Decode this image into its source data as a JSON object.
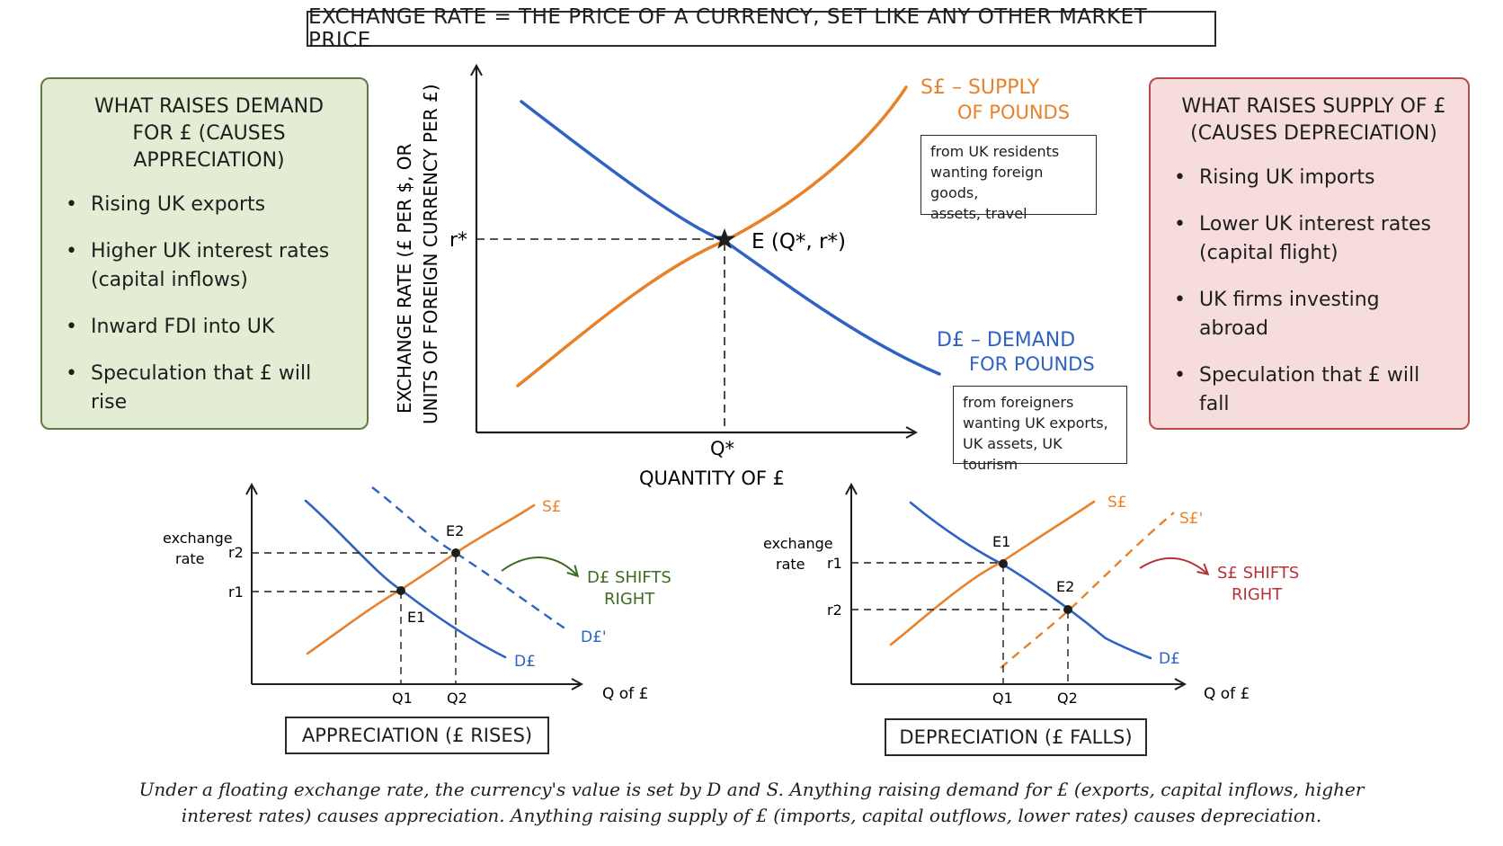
{
  "title": "EXCHANGE RATE = THE PRICE OF A CURRENCY, SET LIKE ANY OTHER MARKET PRICE",
  "demand_panel": {
    "heading_line1": "WHAT RAISES DEMAND",
    "heading_line2": "FOR £ (CAUSES APPRECIATION)",
    "items": [
      "Rising UK exports",
      "Higher UK interest rates (capital inflows)",
      "Inward FDI into UK",
      "Speculation that £ will rise"
    ]
  },
  "supply_panel": {
    "heading_line1": "WHAT RAISES SUPPLY OF £",
    "heading_line2": "(CAUSES DEPRECIATION)",
    "items": [
      "Rising UK imports",
      "Lower UK interest rates (capital flight)",
      "UK firms investing abroad",
      "Speculation that £ will fall"
    ]
  },
  "main_chart": {
    "y_axis_line1": "EXCHANGE RATE (£ PER $, OR",
    "y_axis_line2": "UNITS OF FOREIGN CURRENCY PER £)",
    "x_axis": "QUANTITY OF £",
    "r_label": "r*",
    "q_label": "Q*",
    "eq_label": "E (Q*, r*)",
    "supply_label_1": "S£ – SUPPLY",
    "supply_label_2": "OF POUNDS",
    "demand_label_1": "D£ – DEMAND",
    "demand_label_2": "FOR POUNDS",
    "supply_note": [
      "from UK residents",
      "wanting foreign goods,",
      "assets, travel"
    ],
    "demand_note": [
      "from foreigners",
      "wanting UK exports,",
      "UK assets, UK tourism"
    ]
  },
  "appreciation_chart": {
    "y_label_1": "exchange",
    "y_label_2": "rate",
    "x_label": "Q of £",
    "r1": "r1",
    "r2": "r2",
    "q1": "Q1",
    "q2": "Q2",
    "e1": "E1",
    "e2": "E2",
    "supply_label": "S£",
    "demand_label": "D£",
    "shifted_label": "D£'",
    "shift_text_1": "D£ SHIFTS",
    "shift_text_2": "RIGHT",
    "box_label": "APPRECIATION (£ RISES)"
  },
  "depreciation_chart": {
    "y_label_1": "exchange",
    "y_label_2": "rate",
    "x_label": "Q of £",
    "r1": "r1",
    "r2": "r2",
    "q1": "Q1",
    "q2": "Q2",
    "e1": "E1",
    "e2": "E2",
    "supply_label": "S£",
    "shifted_label": "S£'",
    "demand_label": "D£",
    "shift_text_1": "S£ SHIFTS",
    "shift_text_2": "RIGHT",
    "box_label": "DEPRECIATION (£ FALLS)"
  },
  "caption_line1": "Under a floating exchange rate, the currency's value is set by D and S. Anything raising demand for £ (exports, capital inflows, higher",
  "caption_line2": "interest rates) causes appreciation. Anything raising supply of £ (imports, capital outflows, lower rates) causes depreciation.",
  "colors": {
    "supply": "#e8822a",
    "demand": "#2f62c4",
    "green_text": "#3d6b1f",
    "red_text": "#b8323a",
    "axis": "#1e1e1e"
  },
  "icons": [
    "star-icon",
    "curved-arrow-icon"
  ]
}
